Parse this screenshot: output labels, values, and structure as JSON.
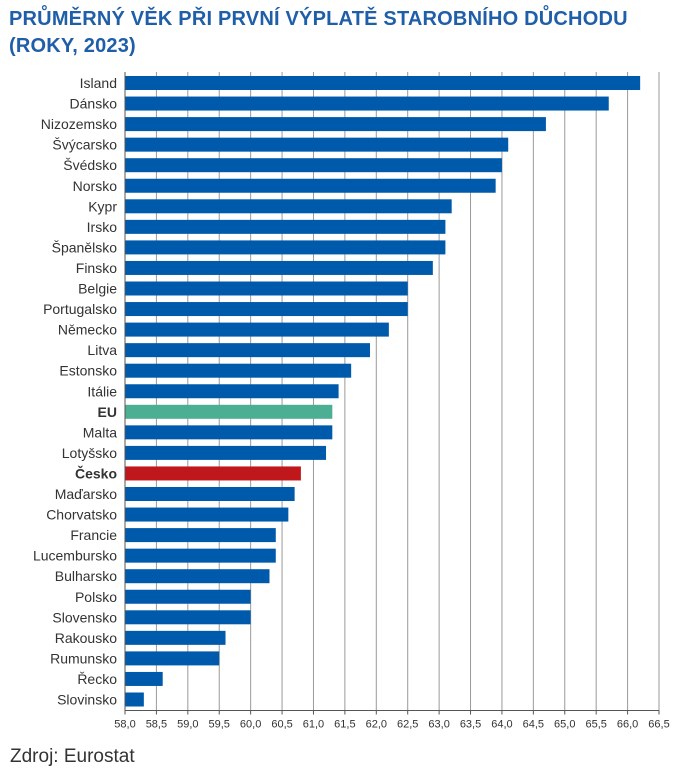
{
  "title_line1": "PRŮMĚRNÝ VĚK PŘI PRVNÍ VÝPLATĚ STAROBNÍHO DŮCHODU",
  "title_line2": "(ROKY, 2023)",
  "source": "Zdroj: Eurostat",
  "colors": {
    "default": "#005aab",
    "eu": "#4caf93",
    "cesko": "#c0171d",
    "title": "#1f5ea8"
  },
  "chart_data": {
    "type": "bar",
    "orientation": "horizontal",
    "categories": [
      "Island",
      "Dánsko",
      "Nizozemsko",
      "Švýcarsko",
      "Švédsko",
      "Norsko",
      "Kypr",
      "Irsko",
      "Španělsko",
      "Finsko",
      "Belgie",
      "Portugalsko",
      "Německo",
      "Litva",
      "Estonsko",
      "Itálie",
      "EU",
      "Malta",
      "Lotyšsko",
      "Česko",
      "Maďarsko",
      "Chorvatsko",
      "Francie",
      "Lucembursko",
      "Bulharsko",
      "Polsko",
      "Slovensko",
      "Rakousko",
      "Rumunsko",
      "Řecko",
      "Slovinsko"
    ],
    "values": [
      66.2,
      65.7,
      64.7,
      64.1,
      64.0,
      63.9,
      63.2,
      63.1,
      63.1,
      62.9,
      62.5,
      62.5,
      62.2,
      61.9,
      61.6,
      61.4,
      61.3,
      61.3,
      61.2,
      60.8,
      60.7,
      60.6,
      60.4,
      60.4,
      60.3,
      60.0,
      60.0,
      59.6,
      59.5,
      58.6,
      58.3
    ],
    "highlight": {
      "EU": "eu",
      "Česko": "cesko"
    },
    "bold_categories": [
      "EU",
      "Česko"
    ],
    "xlim": [
      58.0,
      66.5
    ],
    "ticks": [
      "58,0",
      "58,5",
      "59,0",
      "59,5",
      "60,0",
      "60,5",
      "61,0",
      "61,5",
      "62,0",
      "62,5",
      "63,0",
      "63,5",
      "64,0",
      "64,5",
      "65,0",
      "65,5",
      "66,0",
      "66,5"
    ],
    "tick_values": [
      58.0,
      58.5,
      59.0,
      59.5,
      60.0,
      60.5,
      61.0,
      61.5,
      62.0,
      62.5,
      63.0,
      63.5,
      64.0,
      64.5,
      65.0,
      65.5,
      66.0,
      66.5
    ],
    "grid": true,
    "legend": "none"
  }
}
